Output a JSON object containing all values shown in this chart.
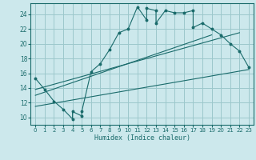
{
  "xlabel": "Humidex (Indice chaleur)",
  "bg_color": "#cce8ec",
  "line_color": "#1a6b6b",
  "grid_color": "#9cc8cc",
  "xlim": [
    -0.5,
    23.5
  ],
  "ylim": [
    9.0,
    25.5
  ],
  "xticks": [
    0,
    1,
    2,
    3,
    4,
    5,
    6,
    7,
    8,
    9,
    10,
    11,
    12,
    13,
    14,
    15,
    16,
    17,
    18,
    19,
    20,
    21,
    22,
    23
  ],
  "yticks": [
    10,
    12,
    14,
    16,
    18,
    20,
    22,
    24
  ],
  "main_curve_x": [
    0,
    1,
    2,
    3,
    4,
    4,
    5,
    5,
    6,
    7,
    8,
    9,
    10,
    11,
    12,
    12,
    13,
    13,
    14,
    15,
    16,
    17,
    17,
    18,
    19,
    20,
    21,
    22,
    23
  ],
  "main_curve_y": [
    15.3,
    13.8,
    12.2,
    11.1,
    9.8,
    10.8,
    10.2,
    10.8,
    16.2,
    17.3,
    19.2,
    21.5,
    22.0,
    25.0,
    23.2,
    24.8,
    24.5,
    22.8,
    24.5,
    24.2,
    24.2,
    24.5,
    22.2,
    22.8,
    22.0,
    21.2,
    20.0,
    19.0,
    16.8
  ],
  "line1_x": [
    0,
    23
  ],
  "line1_y": [
    11.5,
    16.5
  ],
  "line2_x": [
    0,
    19
  ],
  "line2_y": [
    13.0,
    21.2
  ],
  "line3_x": [
    0,
    22
  ],
  "line3_y": [
    13.8,
    21.5
  ]
}
